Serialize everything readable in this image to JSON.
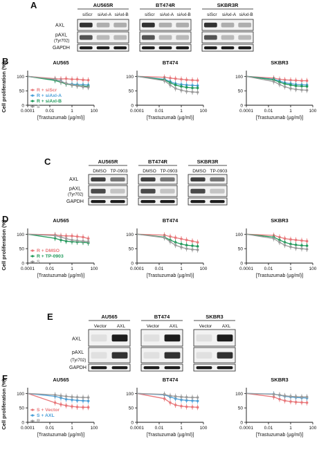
{
  "panels": {
    "A": {
      "letter": "A",
      "groups": [
        {
          "title": "AU565R",
          "lanes": [
            "siScr",
            "siAxl-A",
            "siAxl-B"
          ]
        },
        {
          "title": "BT474R",
          "lanes": [
            "siScr",
            "siAxl-A",
            "siAxl-B"
          ]
        },
        {
          "title": "SKBR3R",
          "lanes": [
            "siScr",
            "siAxl-A",
            "siAxl-B"
          ]
        }
      ],
      "rows": [
        "AXL",
        "pAXL",
        "(Tyr702)",
        "GAPDH"
      ]
    },
    "B": {
      "letter": "B",
      "ylabel": "Cell proliferation (%)",
      "xlabel": "[Trastuzumab (µg/ml)]",
      "plot_titles": [
        "AU565",
        "BT474",
        "SKBR3"
      ],
      "legend": [
        "R + siScr",
        "R + siAxl-A",
        "R + siAxl-B",
        "S"
      ]
    },
    "C": {
      "letter": "C",
      "groups": [
        {
          "title": "AU565R",
          "lanes": [
            "DMSO",
            "TP-0903"
          ]
        },
        {
          "title": "BT474R",
          "lanes": [
            "DMSO",
            "TP-0903"
          ]
        },
        {
          "title": "SKBR3R",
          "lanes": [
            "DMSO",
            "TP-0903"
          ]
        }
      ],
      "rows": [
        "AXL",
        "pAXL",
        "(Tyr702)",
        "GAPDH"
      ]
    },
    "D": {
      "letter": "D",
      "ylabel": "Cell proliferation (%)",
      "xlabel": "[Trastuzumab (µg/ml)]",
      "plot_titles": [
        "AU565",
        "BT474",
        "SKBR3"
      ],
      "legend": [
        "R + DMSO",
        "R + TP-0903",
        "S"
      ]
    },
    "E": {
      "letter": "E",
      "groups": [
        {
          "title": "AU565",
          "lanes": [
            "Vector",
            "AXL"
          ]
        },
        {
          "title": "BT474",
          "lanes": [
            "Vector",
            "AXL"
          ]
        },
        {
          "title": "SKBR3",
          "lanes": [
            "Vector",
            "AXL"
          ]
        }
      ],
      "rows": [
        "AXL",
        "pAXL",
        "(Tyr702)",
        "GAPDH"
      ]
    },
    "F": {
      "letter": "F",
      "ylabel": "Cell proliferation (%)",
      "xlabel": "[Trastuzumab (µg/ml)]",
      "plot_titles": [
        "AU565",
        "BT474",
        "SKBR3"
      ],
      "legend": [
        "S + Vector",
        "S + AXL",
        "R"
      ]
    }
  },
  "colors": {
    "pink": "#e8777a",
    "blue": "#4a9fd8",
    "green": "#1f9a5a",
    "gray": "#9a9a9a"
  },
  "chart_data": [
    {
      "type": "line",
      "panel": "B",
      "xscale": "log",
      "xticks": [
        "0.0001",
        "0.01",
        "1",
        "100"
      ],
      "yticks": [
        0,
        50,
        100
      ],
      "x": [
        0.0001,
        0.03,
        0.1,
        0.3,
        1,
        3,
        10,
        30
      ],
      "subplots": [
        {
          "title": "AU565",
          "series": [
            {
              "name": "R + siScr",
              "color": "pink",
              "values": [
                100,
                92,
                91,
                92,
                90,
                90,
                88,
                87
              ]
            },
            {
              "name": "R + siAxl-A",
              "color": "blue",
              "values": [
                100,
                88,
                84,
                75,
                73,
                72,
                71,
                70
              ]
            },
            {
              "name": "R + siAxl-B",
              "color": "green",
              "values": [
                100,
                86,
                80,
                74,
                70,
                68,
                66,
                65
              ]
            },
            {
              "name": "S",
              "color": "gray",
              "values": [
                100,
                90,
                82,
                76,
                70,
                67,
                64,
                62
              ]
            }
          ]
        },
        {
          "title": "BT474",
          "series": [
            {
              "name": "R + siScr",
              "color": "pink",
              "values": [
                100,
                97,
                94,
                92,
                90,
                88,
                87,
                86
              ]
            },
            {
              "name": "R + siAxl-A",
              "color": "blue",
              "values": [
                100,
                90,
                82,
                75,
                72,
                70,
                69,
                68
              ]
            },
            {
              "name": "R + siAxl-B",
              "color": "green",
              "values": [
                100,
                88,
                78,
                70,
                65,
                62,
                60,
                60
              ]
            },
            {
              "name": "S",
              "color": "gray",
              "values": [
                100,
                85,
                70,
                58,
                52,
                48,
                46,
                45
              ]
            }
          ]
        },
        {
          "title": "SKBR3",
          "series": [
            {
              "name": "R + siScr",
              "color": "pink",
              "values": [
                100,
                94,
                90,
                88,
                87,
                86,
                85,
                85
              ]
            },
            {
              "name": "R + siAxl-A",
              "color": "blue",
              "values": [
                100,
                90,
                84,
                78,
                75,
                72,
                71,
                70
              ]
            },
            {
              "name": "R + siAxl-B",
              "color": "green",
              "values": [
                100,
                88,
                80,
                74,
                70,
                67,
                66,
                65
              ]
            },
            {
              "name": "S",
              "color": "gray",
              "values": [
                100,
                82,
                72,
                64,
                58,
                55,
                53,
                52
              ]
            }
          ]
        }
      ]
    },
    {
      "type": "line",
      "panel": "D",
      "xscale": "log",
      "xticks": [
        "0.0001",
        "0.01",
        "1",
        "100"
      ],
      "yticks": [
        0,
        50,
        100
      ],
      "x": [
        0.0001,
        0.03,
        0.1,
        0.3,
        1,
        3,
        10,
        30
      ],
      "subplots": [
        {
          "title": "AU565",
          "series": [
            {
              "name": "R + DMSO",
              "color": "pink",
              "values": [
                100,
                98,
                95,
                94,
                94,
                92,
                90,
                85
              ]
            },
            {
              "name": "R + TP-0903",
              "color": "green",
              "values": [
                100,
                86,
                80,
                76,
                74,
                73,
                72,
                70
              ]
            },
            {
              "name": "S",
              "color": "gray",
              "values": [
                100,
                95,
                90,
                85,
                80,
                78,
                76,
                75
              ]
            }
          ]
        },
        {
          "title": "BT474",
          "series": [
            {
              "name": "R + DMSO",
              "color": "pink",
              "values": [
                100,
                97,
                92,
                88,
                84,
                80,
                76,
                72
              ]
            },
            {
              "name": "R + TP-0903",
              "color": "green",
              "values": [
                100,
                90,
                80,
                72,
                66,
                62,
                60,
                58
              ]
            },
            {
              "name": "S",
              "color": "gray",
              "values": [
                100,
                88,
                74,
                62,
                55,
                50,
                47,
                46
              ]
            }
          ]
        },
        {
          "title": "SKBR3",
          "series": [
            {
              "name": "R + DMSO",
              "color": "pink",
              "values": [
                100,
                96,
                90,
                85,
                82,
                80,
                78,
                76
              ]
            },
            {
              "name": "R + TP-0903",
              "color": "green",
              "values": [
                100,
                90,
                80,
                72,
                66,
                63,
                61,
                60
              ]
            },
            {
              "name": "S",
              "color": "gray",
              "values": [
                100,
                85,
                72,
                62,
                56,
                52,
                50,
                48
              ]
            }
          ]
        }
      ]
    },
    {
      "type": "line",
      "panel": "F",
      "xscale": "log",
      "xticks": [
        "0.0001",
        "0.01",
        "1",
        "100"
      ],
      "yticks": [
        0,
        50,
        100
      ],
      "x": [
        0.0001,
        0.03,
        0.1,
        0.3,
        1,
        3,
        10,
        30
      ],
      "subplots": [
        {
          "title": "AU565",
          "series": [
            {
              "name": "S + Vector",
              "color": "pink",
              "values": [
                100,
                68,
                62,
                58,
                55,
                53,
                52,
                52
              ]
            },
            {
              "name": "S + AXL",
              "color": "blue",
              "values": [
                100,
                90,
                85,
                80,
                78,
                76,
                75,
                74
              ]
            },
            {
              "name": "R",
              "color": "gray",
              "values": [
                100,
                95,
                92,
                90,
                88,
                87,
                86,
                86
              ]
            }
          ]
        },
        {
          "title": "BT474",
          "series": [
            {
              "name": "S + Vector",
              "color": "pink",
              "values": [
                100,
                82,
                68,
                60,
                56,
                54,
                53,
                52
              ]
            },
            {
              "name": "S + AXL",
              "color": "blue",
              "values": [
                100,
                95,
                88,
                82,
                78,
                76,
                75,
                74
              ]
            },
            {
              "name": "R",
              "color": "gray",
              "values": [
                100,
                97,
                92,
                90,
                88,
                87,
                86,
                86
              ]
            }
          ]
        },
        {
          "title": "SKBR3",
          "series": [
            {
              "name": "S + Vector",
              "color": "pink",
              "values": [
                100,
                88,
                80,
                75,
                72,
                70,
                69,
                68
              ]
            },
            {
              "name": "S + AXL",
              "color": "blue",
              "values": [
                100,
                98,
                94,
                90,
                88,
                86,
                85,
                84
              ]
            },
            {
              "name": "R",
              "color": "gray",
              "values": [
                100,
                97,
                95,
                92,
                90,
                89,
                88,
                88
              ]
            }
          ]
        }
      ]
    }
  ]
}
